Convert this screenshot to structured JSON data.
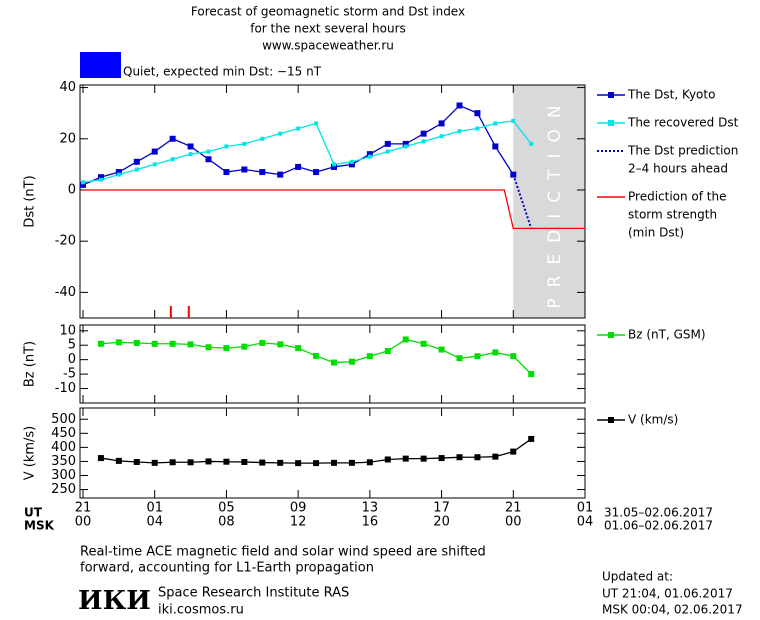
{
  "title": [
    "Forecast of geomagnetic storm and Dst index",
    "for the next several hours",
    "www.spaceweather.ru"
  ],
  "status": {
    "text": "Quiet, expected min Dst: −15 nT",
    "color": "#0000ff"
  },
  "x_axis": {
    "xlim": [
      0,
      28
    ],
    "ut": {
      "label": "UT",
      "range": "31.05–02.06.2017",
      "ticks": [
        {
          "value": 0,
          "label": "21"
        },
        {
          "value": 4,
          "label": "01"
        },
        {
          "value": 8,
          "label": "05"
        },
        {
          "value": 12,
          "label": "09"
        },
        {
          "value": 16,
          "label": "13"
        },
        {
          "value": 20,
          "label": "17"
        },
        {
          "value": 24,
          "label": "21"
        },
        {
          "value": 28,
          "label": "01"
        }
      ]
    },
    "msk": {
      "label": "MSK",
      "range": "01.06–02.06.2017",
      "ticks": [
        {
          "value": 0,
          "label": "00"
        },
        {
          "value": 4,
          "label": "04"
        },
        {
          "value": 8,
          "label": "08"
        },
        {
          "value": 12,
          "label": "12"
        },
        {
          "value": 16,
          "label": "16"
        },
        {
          "value": 20,
          "label": "20"
        },
        {
          "value": 24,
          "label": "00"
        },
        {
          "value": 28,
          "label": "04"
        }
      ]
    }
  },
  "chart_data": [
    {
      "type": "line",
      "y_label": "Dst (nT)",
      "ylim": [
        -50,
        41
      ],
      "yticks": [
        -40,
        -20,
        0,
        20,
        40
      ],
      "prediction": {
        "from": 24,
        "to": 28,
        "label": "PREDICTION",
        "color": "#d9d9d9"
      },
      "storm_marks": {
        "color": "#ff0000",
        "x": [
          4.9,
          5.9
        ]
      },
      "series": [
        {
          "name": [
            "The Dst, Kyoto"
          ],
          "color": "#0000cc",
          "marker": "square",
          "x": [
            0,
            1,
            2,
            3,
            4,
            5,
            6,
            7,
            8,
            9,
            10,
            11,
            12,
            13,
            14,
            15,
            16,
            17,
            18,
            19,
            20,
            21,
            22,
            23,
            24
          ],
          "values": [
            2,
            5,
            7,
            11,
            15,
            20,
            17,
            12,
            7,
            8,
            7,
            6,
            9,
            7,
            9,
            10,
            14,
            18,
            18,
            22,
            26,
            33,
            30,
            17,
            6
          ]
        },
        {
          "name": [
            "The recovered Dst"
          ],
          "color": "#00e5e5",
          "marker": "small-square",
          "x": [
            0,
            1,
            2,
            3,
            4,
            5,
            6,
            7,
            8,
            9,
            10,
            11,
            12,
            13,
            14,
            15,
            16,
            17,
            18,
            19,
            20,
            21,
            22,
            23,
            24,
            25
          ],
          "values": [
            3,
            4,
            6,
            8,
            10,
            12,
            14,
            15,
            17,
            18,
            20,
            22,
            24,
            26,
            10,
            11,
            13,
            15,
            17,
            19,
            21,
            23,
            24,
            26,
            27,
            18
          ]
        },
        {
          "name": [
            "The Dst prediction",
            "2–4 hours ahead"
          ],
          "color": "#0000cc",
          "dash": "dotted",
          "x": [
            24,
            25
          ],
          "values": [
            6,
            -15
          ]
        },
        {
          "name": [
            "Prediction of the",
            "storm strength",
            "(min Dst)"
          ],
          "color": "#ff0000",
          "x": [
            0,
            23.5,
            24,
            28
          ],
          "values": [
            0,
            0,
            -15,
            -15
          ]
        }
      ]
    },
    {
      "type": "line",
      "y_label": "Bz (nT)",
      "ylim": [
        -15,
        12
      ],
      "yticks": [
        -10,
        -5,
        0,
        5,
        10
      ],
      "series": [
        {
          "name": [
            "Bz (nT, GSM)"
          ],
          "color": "#00dd00",
          "marker": "square",
          "x": [
            1,
            2,
            3,
            4,
            5,
            6,
            7,
            8,
            9,
            10,
            11,
            12,
            13,
            14,
            15,
            16,
            17,
            18,
            19,
            20,
            21,
            22,
            23,
            24,
            25
          ],
          "values": [
            5.5,
            6,
            5.8,
            5.5,
            5.5,
            5.3,
            4.3,
            4,
            4.5,
            5.8,
            5.3,
            4,
            1.3,
            -1,
            -0.7,
            1.2,
            3,
            7,
            5.5,
            3.5,
            0.5,
            1.2,
            2.5,
            1.2,
            -5
          ]
        }
      ]
    },
    {
      "type": "line",
      "y_label": "V (km/s)",
      "ylim": [
        220,
        540
      ],
      "yticks": [
        250,
        300,
        350,
        400,
        450,
        500
      ],
      "series": [
        {
          "name": [
            "V (km/s)"
          ],
          "color": "#000000",
          "marker": "square",
          "x": [
            1,
            2,
            3,
            4,
            5,
            6,
            7,
            8,
            9,
            10,
            11,
            12,
            13,
            14,
            15,
            16,
            17,
            18,
            19,
            20,
            21,
            22,
            23,
            24,
            25
          ],
          "values": [
            362,
            352,
            348,
            345,
            347,
            347,
            350,
            349,
            348,
            346,
            345,
            344,
            344,
            345,
            345,
            347,
            357,
            360,
            360,
            362,
            365,
            365,
            367,
            385,
            430
          ]
        }
      ]
    }
  ],
  "footer": {
    "notes": [
      "Real-time ACE magnetic field and solar wind speed are shifted",
      "forward, accounting for L1-Earth propagation"
    ],
    "logo": "ИКИ",
    "institute": "Space Research Institute RAS",
    "site": "iki.cosmos.ru",
    "updated": [
      "Updated at:",
      "UT   21:04, 01.06.2017",
      "MSK 00:04, 02.06.2017"
    ]
  }
}
